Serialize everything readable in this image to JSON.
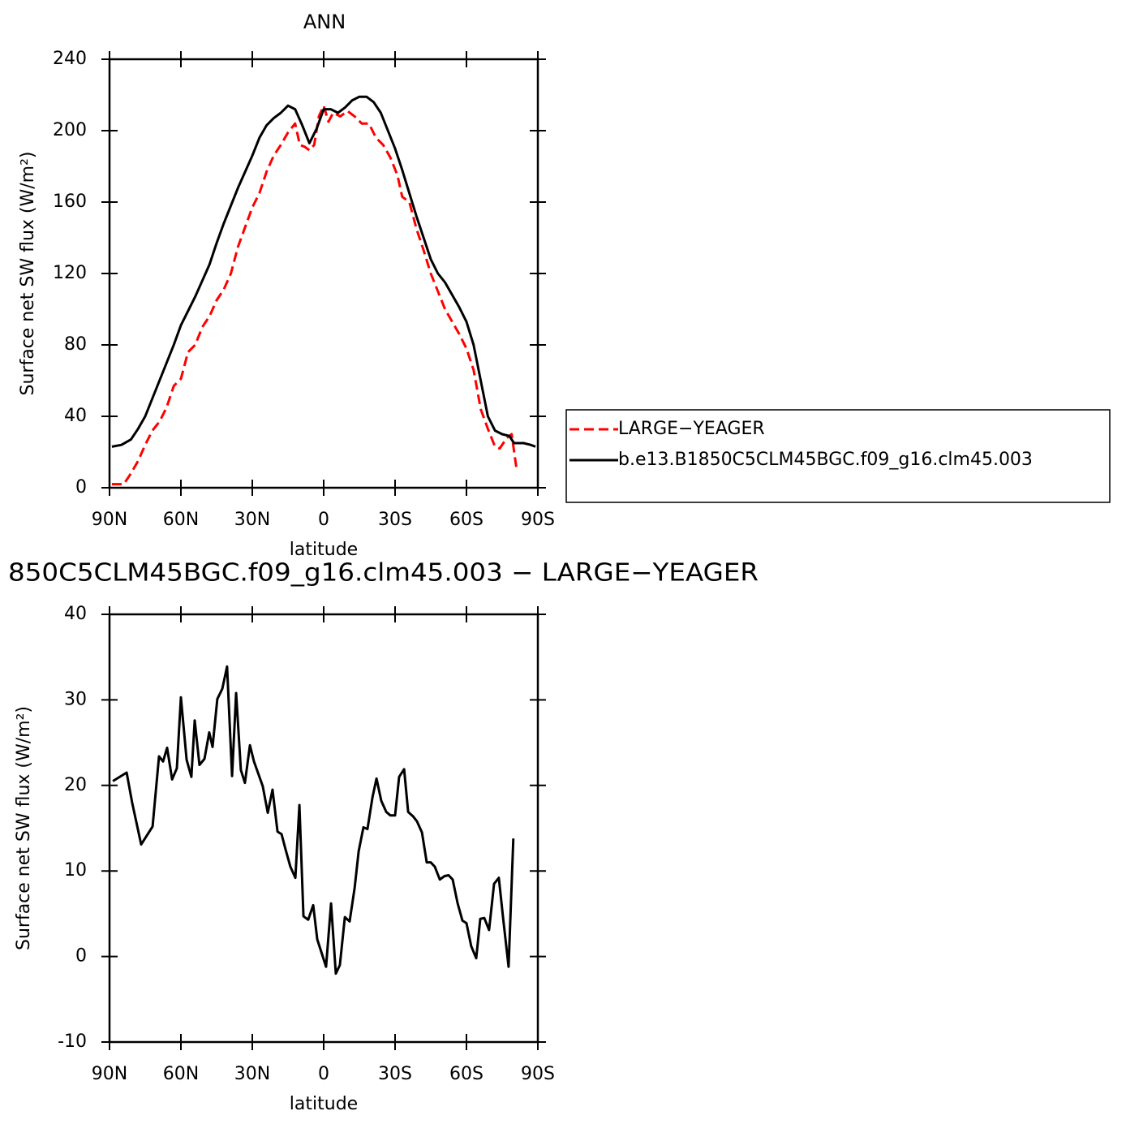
{
  "chart_data": [
    {
      "type": "line",
      "title": "ANN",
      "xlabel": "latitude",
      "ylabel": "Surface net SW flux (W/m²)",
      "xlim": [
        90,
        -90
      ],
      "xticks": [
        {
          "value": 90,
          "label": "90N"
        },
        {
          "value": 60,
          "label": "60N"
        },
        {
          "value": 30,
          "label": "30N"
        },
        0,
        {
          "value": -30,
          "label": "30S"
        },
        {
          "value": -60,
          "label": "60S"
        },
        {
          "value": -90,
          "label": "90S"
        }
      ],
      "ylim": [
        0,
        240
      ],
      "yticks": [
        0,
        40,
        80,
        120,
        160,
        200,
        240
      ],
      "legend": "right",
      "series": [
        {
          "name": "LARGE−YEAGER",
          "color": "#ff0000",
          "dash": true,
          "x": [
            89,
            84,
            81,
            78,
            75,
            72,
            69,
            66,
            63,
            60,
            57,
            54,
            51,
            48,
            45,
            42,
            39,
            36,
            33,
            30,
            27,
            24,
            21,
            18,
            15,
            12,
            10,
            8,
            6,
            4,
            2,
            0,
            -2,
            -4,
            -7,
            -10,
            -13,
            -16,
            -19,
            -22,
            -25,
            -28,
            -31,
            -33,
            -36,
            -39,
            -42,
            -45,
            -48,
            -51,
            -54,
            -57,
            -60,
            -63,
            -66,
            -69,
            -72,
            -74,
            -77,
            -79,
            -81
          ],
          "values": [
            2,
            2,
            8,
            15,
            24,
            32,
            37,
            45,
            57,
            61,
            76,
            80,
            90,
            96,
            105,
            111,
            120,
            135,
            146,
            157,
            165,
            177,
            186,
            192,
            199,
            204,
            192,
            191,
            189,
            192,
            208,
            214,
            205,
            210,
            208,
            211,
            208,
            204,
            204,
            196,
            192,
            185,
            175,
            163,
            160,
            145,
            133,
            120,
            110,
            100,
            93,
            86,
            78,
            66,
            44,
            33,
            23,
            22,
            28,
            30,
            11
          ]
        },
        {
          "name": "b.e13.B1850C5CLM45BGC.f09_g16.clm45.003",
          "color": "#000000",
          "dash": false,
          "x": [
            89,
            85,
            81,
            78,
            75,
            72,
            69,
            66,
            63,
            60,
            57,
            54,
            51,
            48,
            45,
            42,
            39,
            36,
            33,
            30,
            27,
            24,
            21,
            18,
            15,
            12,
            9,
            6,
            3,
            0,
            -3,
            -6,
            -9,
            -12,
            -15,
            -18,
            -21,
            -24,
            -27,
            -30,
            -33,
            -36,
            -39,
            -42,
            -45,
            -48,
            -51,
            -54,
            -57,
            -60,
            -63,
            -66,
            -69,
            -72,
            -75,
            -78,
            -80,
            -84,
            -87,
            -89
          ],
          "values": [
            23,
            24,
            27,
            33,
            40,
            50,
            60,
            70,
            80,
            91,
            99,
            107,
            116,
            125,
            137,
            148,
            158,
            168,
            177,
            186,
            196,
            203,
            207,
            210,
            214,
            212,
            203,
            193,
            201,
            212,
            212,
            210,
            213,
            217,
            219,
            219,
            216,
            210,
            200,
            190,
            178,
            165,
            152,
            140,
            128,
            120,
            115,
            108,
            101,
            93,
            80,
            60,
            40,
            32,
            30,
            29,
            25,
            25,
            24,
            23
          ]
        }
      ]
    },
    {
      "type": "line",
      "title": "850C5CLM45BGC.f09_g16.clm45.003 − LARGE−YEAGER",
      "xlabel": "latitude",
      "ylabel": "Surface net SW flux (W/m²)",
      "xlim": [
        90,
        -90
      ],
      "xticks": [
        {
          "value": 90,
          "label": "90N"
        },
        {
          "value": 60,
          "label": "60N"
        },
        {
          "value": 30,
          "label": "30N"
        },
        0,
        {
          "value": -30,
          "label": "30S"
        },
        {
          "value": -60,
          "label": "60S"
        },
        {
          "value": -90,
          "label": "90S"
        }
      ],
      "ylim": [
        -10,
        40
      ],
      "yticks": [
        -10,
        0,
        10,
        20,
        30,
        40
      ],
      "series": [
        {
          "color": "#000000",
          "dash": false,
          "x": [
            88.6,
            82.8,
            80.5,
            76.7,
            71.9,
            69.2,
            67.5,
            65.8,
            63.7,
            61.7,
            60.0,
            57.6,
            55.6,
            54.2,
            52.2,
            50.1,
            48.1,
            46.7,
            44.7,
            42.6,
            40.6,
            38.5,
            36.8,
            34.8,
            33.1,
            31.0,
            29.3,
            25.6,
            23.5,
            21.5,
            19.4,
            17.7,
            16.0,
            14.0,
            11.9,
            10.2,
            8.5,
            6.5,
            4.4,
            2.7,
            -1.0,
            -3.1,
            -5.1,
            -6.8,
            -8.9,
            -10.9,
            -13.0,
            -14.7,
            -16.7,
            -18.4,
            -20.5,
            -22.2,
            -24.2,
            -26.3,
            -28.0,
            -30.0,
            -31.7,
            -33.8,
            -35.5,
            -37.5,
            -39.2,
            -41.3,
            -43.3,
            -45.0,
            -46.7,
            -48.8,
            -50.8,
            -52.5,
            -54.2,
            -56.3,
            -58.3,
            -60.0,
            -62.0,
            -64.1,
            -65.8,
            -67.5,
            -69.5,
            -71.6,
            -73.6,
            -75.4,
            -77.7,
            -79.7
          ],
          "values": [
            20.5,
            21.5,
            18,
            13.1,
            15.2,
            23.4,
            22.8,
            24.4,
            20.7,
            22,
            30.3,
            23,
            21,
            27.6,
            22.4,
            23.1,
            26.2,
            24.5,
            30.1,
            31.3,
            33.9,
            21.1,
            30.8,
            21.8,
            20.3,
            24.7,
            22.8,
            19.9,
            16.8,
            19.5,
            14.6,
            14.3,
            12.5,
            10.5,
            9.2,
            17.7,
            4.7,
            4.3,
            6,
            2,
            -1.2,
            6.2,
            -2,
            -1,
            4.6,
            4.1,
            8,
            12.3,
            15.1,
            14.9,
            18.6,
            20.8,
            18.2,
            16.9,
            16.5,
            16.5,
            21,
            21.9,
            16.9,
            16.4,
            15.8,
            14.5,
            11,
            11,
            10.5,
            9,
            9.4,
            9.5,
            9,
            6.2,
            4.2,
            3.9,
            1.2,
            -0.2,
            4.4,
            4.5,
            3.1,
            8.5,
            9.2,
            4.5,
            -1.2,
            13.8
          ]
        }
      ]
    }
  ]
}
